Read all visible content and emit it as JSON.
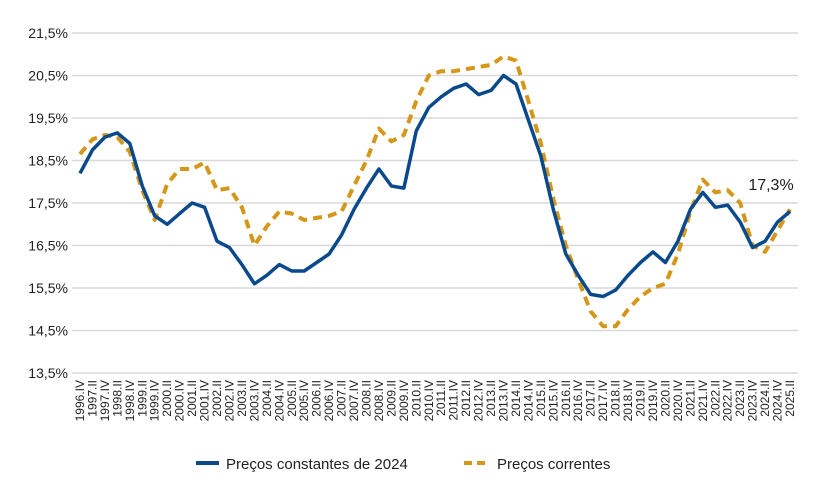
{
  "chart_data": {
    "type": "line",
    "title": "",
    "xlabel": "",
    "ylabel": "",
    "ylim": [
      13.5,
      21.5
    ],
    "yticks": [
      "13,5%",
      "14,5%",
      "15,5%",
      "16,5%",
      "17,5%",
      "18,5%",
      "19,5%",
      "20,5%",
      "21,5%"
    ],
    "ytick_values": [
      13.5,
      14.5,
      15.5,
      16.5,
      17.5,
      18.5,
      19.5,
      20.5,
      21.5
    ],
    "grid": true,
    "legend_position": "bottom",
    "x": [
      "1996.IV",
      "1997.II",
      "1997.IV",
      "1998.II",
      "1998.IV",
      "1999.II",
      "1999.IV",
      "2000.II",
      "2000.IV",
      "2001.II",
      "2001.IV",
      "2002.II",
      "2002.IV",
      "2003.II",
      "2003.IV",
      "2004.II",
      "2004.IV",
      "2005.II",
      "2005.IV",
      "2006.II",
      "2006.IV",
      "2007.II",
      "2007.IV",
      "2008.II",
      "2008.IV",
      "2009.II",
      "2009.IV",
      "2010.II",
      "2010.IV",
      "2011.II",
      "2011.IV",
      "2012.II",
      "2012.IV",
      "2013.II",
      "2013.IV",
      "2014.II",
      "2014.IV",
      "2015.II",
      "2015.IV",
      "2016.II",
      "2016.IV",
      "2017.II",
      "2017.IV",
      "2018.II",
      "2018.IV",
      "2019.II",
      "2019.IV",
      "2020.II",
      "2020.IV",
      "2021.II",
      "2021.IV",
      "2022.II",
      "2022.IV",
      "2023.II",
      "2023.IV",
      "2024.II",
      "2024.IV",
      "2025.II"
    ],
    "series": [
      {
        "name": "Preços constantes de 2024",
        "color": "#0a4a8c",
        "style": "solid",
        "values": [
          18.2,
          18.75,
          19.05,
          19.15,
          18.9,
          17.9,
          17.2,
          17.0,
          17.25,
          17.5,
          17.4,
          16.6,
          16.45,
          16.05,
          15.6,
          15.8,
          16.05,
          15.9,
          15.9,
          16.1,
          16.3,
          16.75,
          17.35,
          17.85,
          18.3,
          17.9,
          17.85,
          19.2,
          19.75,
          20.0,
          20.2,
          20.3,
          20.05,
          20.15,
          20.5,
          20.3,
          19.45,
          18.6,
          17.35,
          16.3,
          15.8,
          15.35,
          15.3,
          15.45,
          15.8,
          16.1,
          16.35,
          16.1,
          16.6,
          17.35,
          17.75,
          17.4,
          17.45,
          17.05,
          16.45,
          16.6,
          17.05,
          17.3
        ]
      },
      {
        "name": "Preços correntes",
        "color": "#d4971a",
        "style": "dashed",
        "values": [
          18.65,
          19.0,
          19.1,
          19.05,
          18.7,
          17.8,
          17.1,
          17.95,
          18.3,
          18.3,
          18.45,
          17.8,
          17.85,
          17.4,
          16.5,
          16.95,
          17.3,
          17.25,
          17.1,
          17.15,
          17.2,
          17.3,
          17.9,
          18.5,
          19.25,
          18.95,
          19.1,
          19.9,
          20.5,
          20.6,
          20.6,
          20.65,
          20.7,
          20.75,
          20.95,
          20.85,
          19.9,
          18.9,
          17.6,
          16.5,
          15.7,
          14.95,
          14.6,
          14.6,
          15.0,
          15.3,
          15.5,
          15.6,
          16.3,
          17.3,
          18.05,
          17.75,
          17.8,
          17.5,
          16.5,
          16.35,
          16.85,
          17.35
        ]
      }
    ],
    "annotations": [
      {
        "text": "17,3%",
        "x": "2025.II",
        "series": "Preços constantes de 2024"
      }
    ]
  }
}
